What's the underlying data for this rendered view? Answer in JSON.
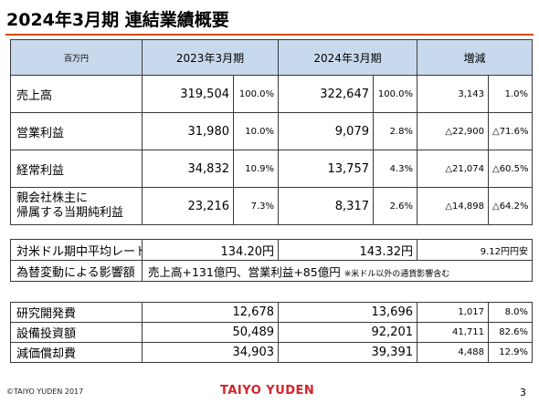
{
  "title": "2024年3月期 連結業績概要",
  "main_table": {
    "headers": {
      "unit": "百万円",
      "fy2023": "2023年3月期",
      "fy2024": "2024年3月期",
      "change": "増減"
    },
    "rows": [
      {
        "label": "売上高",
        "v2023": "319,504",
        "p2023": "100.0%",
        "v2024": "322,647",
        "p2024": "100.0%",
        "chg": "3,143",
        "chg_pct": "1.0%"
      },
      {
        "label": "営業利益",
        "v2023": "31,980",
        "p2023": "10.0%",
        "v2024": "9,079",
        "p2024": "2.8%",
        "chg": "△22,900",
        "chg_pct": "△71.6%"
      },
      {
        "label": "経常利益",
        "v2023": "34,832",
        "p2023": "10.9%",
        "v2024": "13,757",
        "p2024": "4.3%",
        "chg": "△21,074",
        "chg_pct": "△60.5%"
      },
      {
        "label": "親会社株主に\n帰属する当期純利益",
        "v2023": "23,216",
        "p2023": "7.3%",
        "v2024": "8,317",
        "p2024": "2.6%",
        "chg": "△14,898",
        "chg_pct": "△64.2%"
      }
    ]
  },
  "fx_table": {
    "rate_label": "対米ドル期中平均レート",
    "rate_2023": "134.20円",
    "rate_2024": "143.32円",
    "rate_change": "9.12円円安",
    "impact_label": "為替変動による影響額",
    "impact_text": "売上高+131億円、営業利益+85億円",
    "impact_note": "※米ドル以外の通貨影響含む"
  },
  "rd_table": {
    "rows": [
      {
        "label": "研究開発費",
        "v2023": "12,678",
        "v2024": "13,696",
        "chg": "1,017",
        "chg_pct": "8.0%"
      },
      {
        "label": "設備投資額",
        "v2023": "50,489",
        "v2024": "92,201",
        "chg": "41,711",
        "chg_pct": "82.6%"
      },
      {
        "label": "減価償却費",
        "v2023": "34,903",
        "v2024": "39,391",
        "chg": "4,488",
        "chg_pct": "12.9%"
      }
    ]
  },
  "footer": {
    "copyright": "©TAIYO YUDEN 2017",
    "logo": "TAIYO YUDEN",
    "page": "3"
  },
  "colors": {
    "accent_rule": "#d24b1a",
    "header_fill": "#c8d9ee",
    "logo": "#d2232a"
  }
}
